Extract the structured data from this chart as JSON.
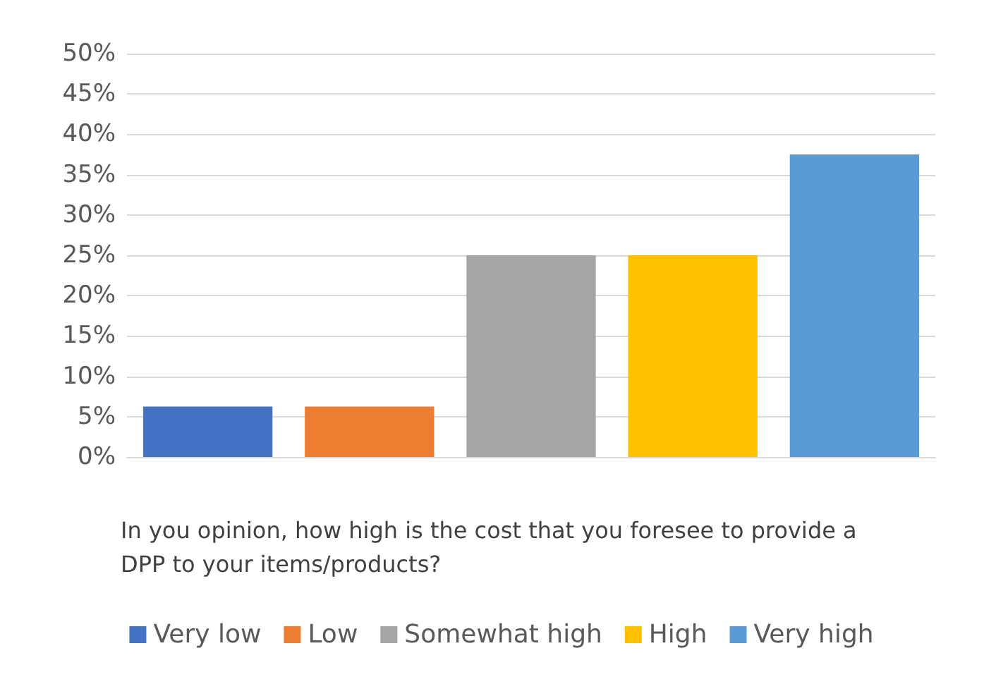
{
  "chart_data": {
    "type": "bar",
    "xlabel": "In you opinion, how high is the cost that you foresee to provide a DPP to your items/products?",
    "categories": [
      null,
      null,
      null,
      null,
      null
    ],
    "stacked": true,
    "series": [
      {
        "name": "Very low",
        "color": "#4472c4",
        "values": [
          6.25,
          null,
          null,
          null,
          null
        ]
      },
      {
        "name": "Low",
        "color": "#ed7d31",
        "values": [
          null,
          6.25,
          null,
          null,
          null
        ]
      },
      {
        "name": "Somewhat high",
        "color": "#a5a5a5",
        "values": [
          null,
          null,
          25,
          null,
          null
        ]
      },
      {
        "name": "High",
        "color": "#ffc000",
        "values": [
          null,
          null,
          null,
          25,
          null
        ]
      },
      {
        "name": "Very high",
        "color": "#5b9bd5",
        "values": [
          null,
          null,
          null,
          null,
          37.5
        ]
      }
    ],
    "ylim": [
      0,
      50
    ],
    "yticks": [
      {
        "value": 0,
        "label": "0%"
      },
      {
        "value": 5,
        "label": "5%"
      },
      {
        "value": 10,
        "label": "10%"
      },
      {
        "value": 15,
        "label": "15%"
      },
      {
        "value": 20,
        "label": "20%"
      },
      {
        "value": 25,
        "label": "25%"
      },
      {
        "value": 30,
        "label": "30%"
      },
      {
        "value": 35,
        "label": "35%"
      },
      {
        "value": 40,
        "label": "40%"
      },
      {
        "value": 45,
        "label": "45%"
      },
      {
        "value": 50,
        "label": "50%"
      }
    ],
    "grid": "y",
    "legend": "bottom"
  }
}
